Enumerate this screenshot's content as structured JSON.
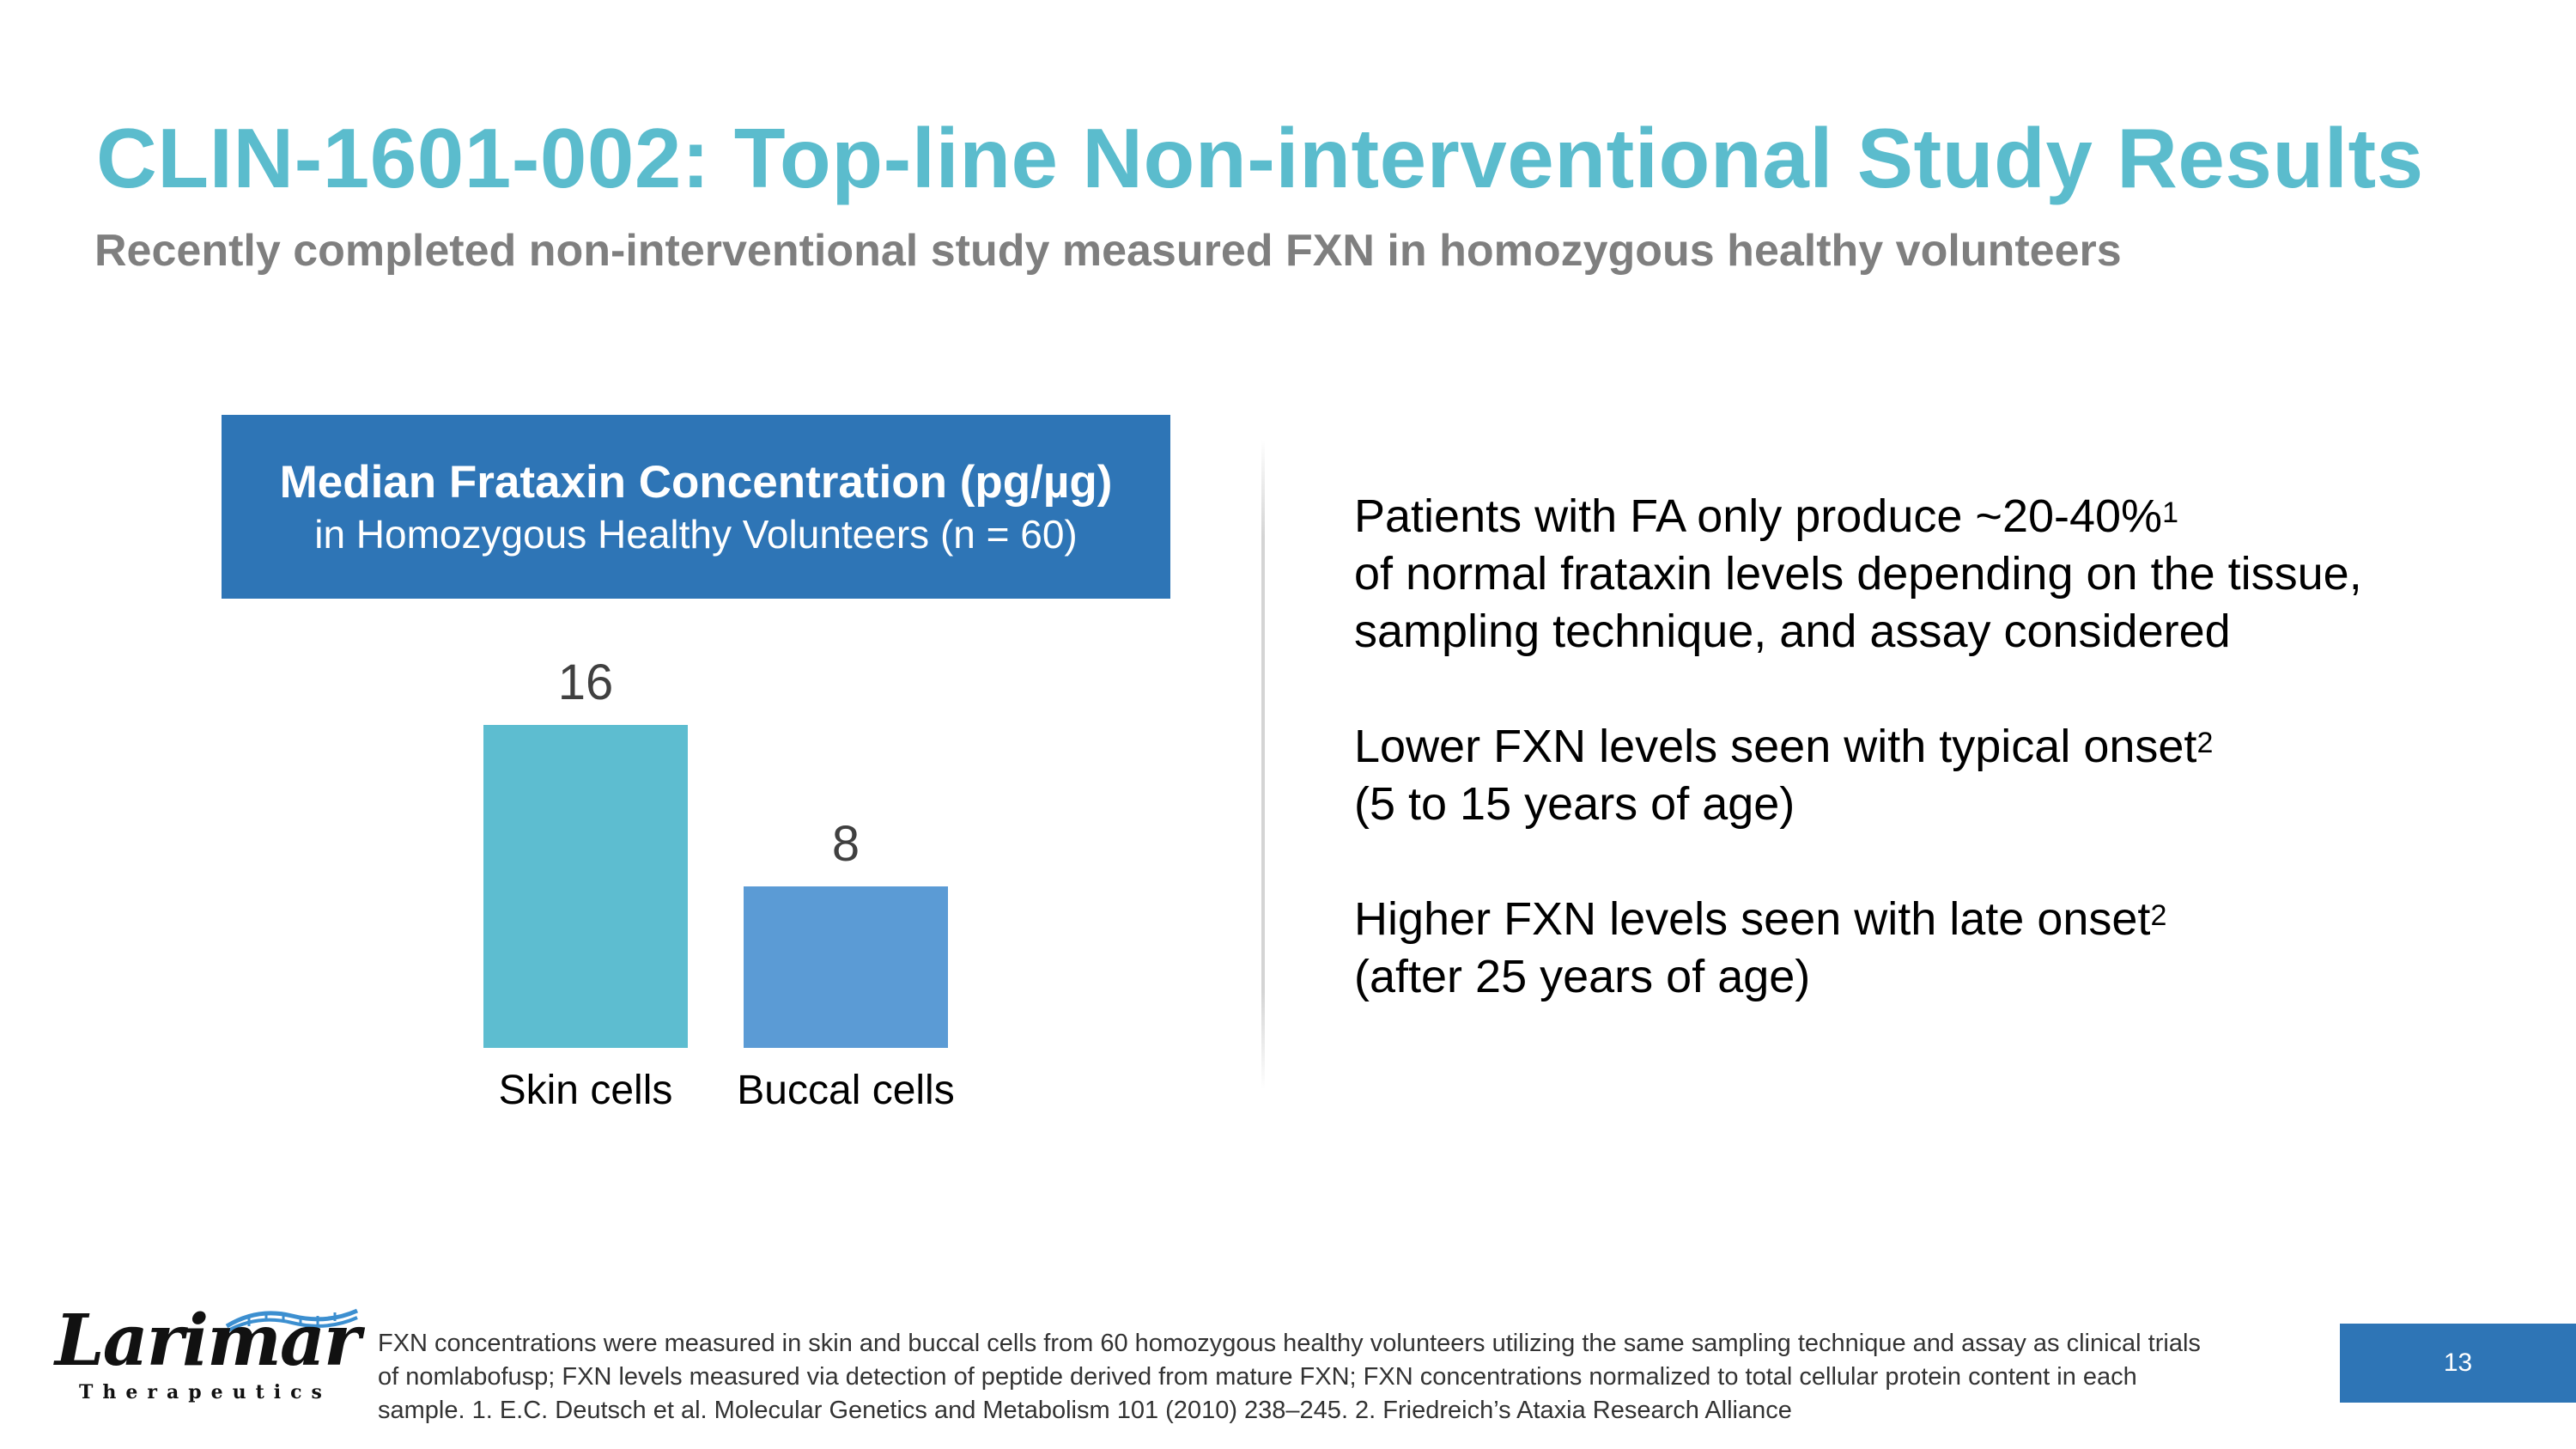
{
  "header": {
    "title": "CLIN-1601-002: Top-line Non-interventional Study Results",
    "subtitle": "Recently completed non-interventional study measured FXN in homozygous healthy volunteers"
  },
  "chart_data": {
    "type": "bar",
    "title": "Median Frataxin Concentration (pg/µg)",
    "subtitle": "in Homozygous Healthy Volunteers (n = 60)",
    "categories": [
      "Skin cells",
      "Buccal cells"
    ],
    "values": [
      16,
      8
    ],
    "bar_colors": [
      "#5dbdd0",
      "#5b9bd5"
    ],
    "ylim": [
      0,
      16
    ],
    "grid": false,
    "xlabel": "",
    "ylabel": ""
  },
  "bullets": [
    {
      "line1": "Patients with FA only produce ~20-40%",
      "sup": "1",
      "rest": " of normal frataxin levels depending on the tissue, sampling technique, and assay considered"
    },
    {
      "line1": "Lower FXN levels seen with typical onset",
      "sup": "2",
      "rest": " (5 to 15 years of age)"
    },
    {
      "line1": "Higher FXN levels seen with late onset",
      "sup": "2",
      "rest": " (after 25 years of age)"
    }
  ],
  "logo": {
    "name": "Larimar",
    "tagline": "Therapeutics"
  },
  "footnote": "FXN concentrations were measured in skin and buccal cells from 60 homozygous healthy volunteers utilizing the same sampling technique and assay as clinical trials of nomlabofusp; FXN levels measured via detection of peptide derived from mature FXN; FXN concentrations normalized to total cellular protein content in each sample. 1. E.C. Deutsch et al. Molecular Genetics and Metabolism 101 (2010) 238–245. 2. Friedreich’s Ataxia Research Alliance",
  "page_number": "13",
  "colors": {
    "title": "#5bbccd",
    "header_bg": "#2e75b6",
    "subtitle": "#7f7f7f"
  }
}
